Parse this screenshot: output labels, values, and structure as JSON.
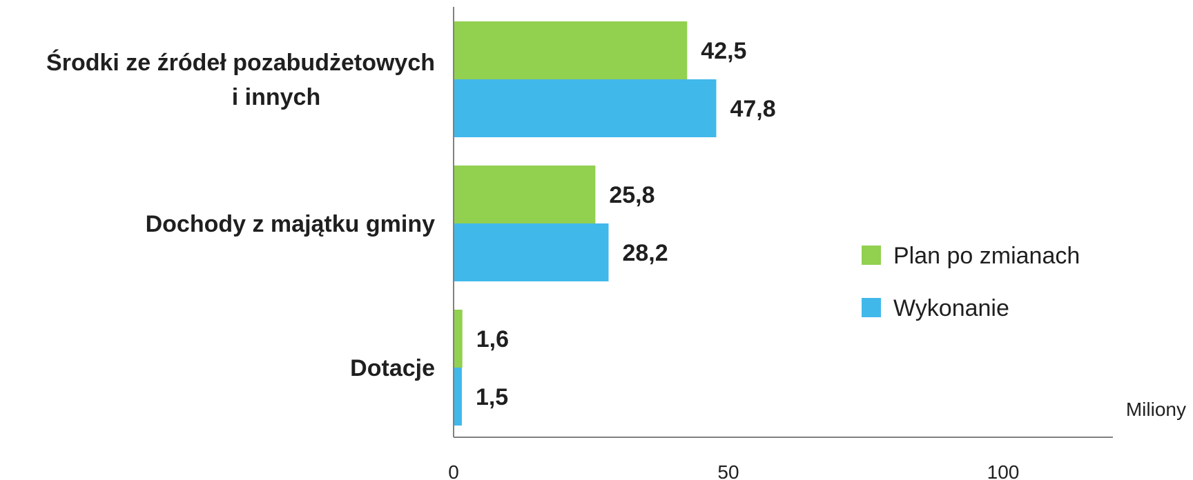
{
  "chart_data": {
    "type": "bar",
    "orientation": "horizontal",
    "categories": [
      [
        "Środki ze źródeł pozabudżetowych",
        "i innych"
      ],
      [
        "Dochody z majątku gminy"
      ],
      [
        "Dotacje"
      ]
    ],
    "series": [
      {
        "name": "Plan po zmianach",
        "color": "#92d050",
        "values": [
          42.5,
          25.8,
          1.6
        ],
        "labels": [
          "42,5",
          "25,8",
          "1,6"
        ]
      },
      {
        "name": "Wykonanie",
        "color": "#41b8ea",
        "values": [
          47.8,
          28.2,
          1.5
        ],
        "labels": [
          "47,8",
          "28,2",
          "1,5"
        ]
      }
    ],
    "x_ticks": [
      0,
      50,
      100
    ],
    "x_tick_labels": [
      "0",
      "50",
      "100"
    ],
    "xlim": [
      0,
      120
    ],
    "unit_label": "Miliony",
    "legend_position": "right",
    "grid": false
  }
}
